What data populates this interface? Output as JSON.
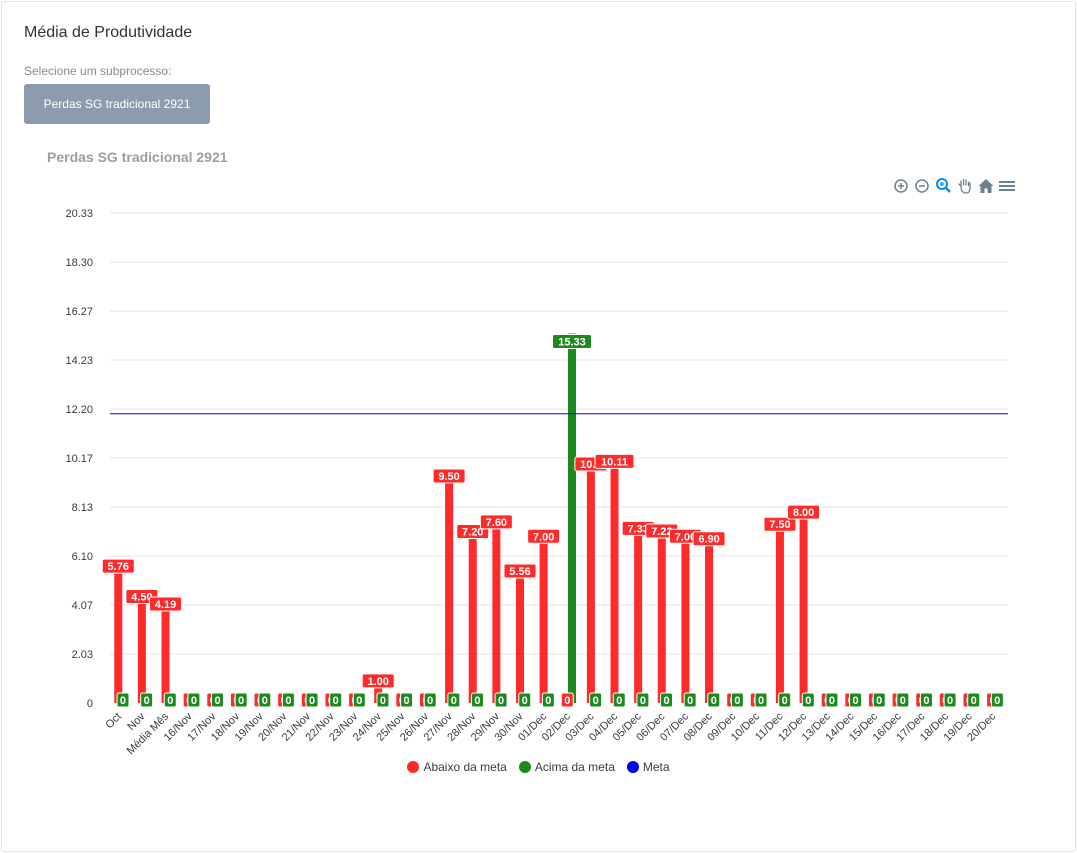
{
  "page": {
    "title": "Média de Produtividade",
    "select_label": "Selecione um subprocesso:",
    "subprocess_button": "Perdas SG tradicional 2921"
  },
  "toolbar": {
    "icons": [
      "zoom-in-icon",
      "zoom-out-icon",
      "magnify-icon",
      "pan-hand-icon",
      "home-icon",
      "menu-icon"
    ],
    "active_color": "#008ffb",
    "icon_color": "#6e8192"
  },
  "chart_data": {
    "type": "bar",
    "title": "Perdas SG tradicional 2921",
    "ylim": [
      0,
      20.33
    ],
    "yticks": [
      "0",
      "2.03",
      "4.07",
      "6.10",
      "8.13",
      "10.17",
      "12.20",
      "14.23",
      "16.27",
      "18.30",
      "20.33"
    ],
    "grid": true,
    "legend_position": "bottom",
    "meta_value": 12,
    "categories": [
      "Oct",
      "Nov",
      "Média Mês",
      "16/Nov",
      "17/Nov",
      "18/Nov",
      "19/Nov",
      "20/Nov",
      "21/Nov",
      "22/Nov",
      "23/Nov",
      "24/Nov",
      "25/Nov",
      "26/Nov",
      "27/Nov",
      "28/Nov",
      "29/Nov",
      "30/Nov",
      "01/Dec",
      "02/Dec",
      "03/Dec",
      "04/Dec",
      "05/Dec",
      "06/Dec",
      "07/Dec",
      "08/Dec",
      "09/Dec",
      "10/Dec",
      "11/Dec",
      "12/Dec",
      "13/Dec",
      "14/Dec",
      "15/Dec",
      "16/Dec",
      "17/Dec",
      "18/Dec",
      "19/Dec",
      "20/Dec"
    ],
    "series": [
      {
        "name": "Abaixo da meta",
        "color": "#ff2a2a",
        "values": [
          5.76,
          4.5,
          4.19,
          0,
          0,
          0,
          0,
          0,
          0,
          0,
          0,
          1.0,
          0,
          0,
          9.5,
          7.2,
          7.6,
          5.56,
          7.0,
          0,
          10.0,
          10.11,
          7.33,
          7.22,
          7.0,
          6.9,
          0,
          0,
          7.5,
          8.0,
          0,
          0,
          0,
          0,
          0,
          0,
          0,
          0
        ],
        "labels": [
          "5.76",
          "4.50",
          "4.19",
          "0",
          "0",
          "0",
          "0",
          "0",
          "0",
          "0",
          "0",
          "1.00",
          "0",
          "0",
          "9.50",
          "7.20",
          "7.60",
          "5.56",
          "7.00",
          "0",
          "10.0",
          "10.11",
          "7.33",
          "7.22",
          "7.00",
          "6.90",
          "0",
          "0",
          "7.50",
          "8.00",
          "0",
          "0",
          "0",
          "0",
          "0",
          "0",
          "0",
          "0"
        ]
      },
      {
        "name": "Acima da meta",
        "color": "#1e8a1e",
        "values": [
          0,
          0,
          0,
          0,
          0,
          0,
          0,
          0,
          0,
          0,
          0,
          0,
          0,
          0,
          0,
          0,
          0,
          0,
          0,
          15.33,
          0,
          0,
          0,
          0,
          0,
          0,
          0,
          0,
          0,
          0,
          0,
          0,
          0,
          0,
          0,
          0,
          0,
          0
        ],
        "labels": [
          "0",
          "0",
          "0",
          "0",
          "0",
          "0",
          "0",
          "0",
          "0",
          "0",
          "0",
          "0",
          "0",
          "0",
          "0",
          "0",
          "0",
          "0",
          "0",
          "15.33",
          "0",
          "0",
          "0",
          "0",
          "0",
          "0",
          "0",
          "0",
          "0",
          "0",
          "0",
          "0",
          "0",
          "0",
          "0",
          "0",
          "0",
          "0"
        ]
      },
      {
        "name": "Meta",
        "color": "#0000ff",
        "type": "line",
        "values": [
          12,
          12,
          12,
          12,
          12,
          12,
          12,
          12,
          12,
          12,
          12,
          12,
          12,
          12,
          12,
          12,
          12,
          12,
          12,
          12,
          12,
          12,
          12,
          12,
          12,
          12,
          12,
          12,
          12,
          12,
          12,
          12,
          12,
          12,
          12,
          12,
          12,
          12
        ]
      }
    ]
  }
}
